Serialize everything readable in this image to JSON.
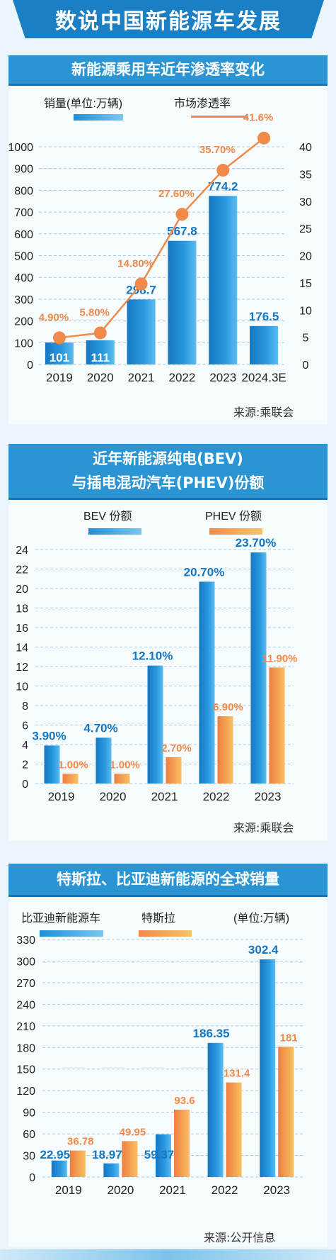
{
  "main_title": "数说中国新能源车发展",
  "colors": {
    "title_blue": "#1a7fc4",
    "bar_blue": "#1f8fd6",
    "bar_blue_light": "#46b0ec",
    "orange": "#f08a4b",
    "orange_light": "#f7b45d",
    "blue_label": "#1577c2"
  },
  "section1": {
    "title": "新能源乘用车近年渗透率变化",
    "legend_bar": "销量(单位:万辆)",
    "legend_line": "市场渗透率",
    "source": "来源:乘联会",
    "chart_data": {
      "type": "bar",
      "categories": [
        "2019",
        "2020",
        "2021",
        "2022",
        "2023",
        "2024.3E"
      ],
      "series": [
        {
          "name": "销量(单位:万辆)",
          "values": [
            101,
            111,
            298.7,
            567.8,
            774.2,
            176.5
          ],
          "value_labels": [
            "101",
            "111",
            "298.7",
            "567.8",
            "774.2",
            "176.5"
          ]
        },
        {
          "name": "市场渗透率",
          "type": "line",
          "values": [
            4.9,
            5.8,
            14.8,
            27.6,
            35.7,
            41.6
          ],
          "value_labels": [
            "4.90%",
            "5.80%",
            "14.80%",
            "27.60%",
            "35.70%",
            "41.6%"
          ]
        }
      ],
      "yticks_left": [
        "0",
        "100",
        "200",
        "300",
        "400",
        "500",
        "600",
        "700",
        "800",
        "900",
        "1000"
      ],
      "yticks_right": [
        "0",
        "5",
        "10",
        "15",
        "20",
        "25",
        "30",
        "35",
        "40"
      ],
      "ylim_left": [
        0,
        1000
      ],
      "ylim_right": [
        0,
        40
      ],
      "grid": "horizontal dashed"
    }
  },
  "section2": {
    "title_line1": "近年新能源纯电(BEV)",
    "title_line2": "与插电混动汽车(PHEV)份额",
    "legend_bev": "BEV 份额",
    "legend_phev": "PHEV 份额",
    "source": "来源:乘联会",
    "chart_data": {
      "type": "bar",
      "categories": [
        "2019",
        "2020",
        "2021",
        "2022",
        "2023"
      ],
      "series": [
        {
          "name": "BEV 份额",
          "values": [
            3.9,
            4.7,
            12.1,
            20.7,
            23.7
          ],
          "value_labels": [
            "3.90%",
            "4.70%",
            "12.10%",
            "20.70%",
            "23.70%"
          ]
        },
        {
          "name": "PHEV 份额",
          "values": [
            1.0,
            1.0,
            2.7,
            6.9,
            11.9
          ],
          "value_labels": [
            "1.00%",
            "1.00%",
            "2.70%",
            "6.90%",
            "11.90%"
          ]
        }
      ],
      "yticks": [
        "0",
        "2",
        "4",
        "6",
        "8",
        "10",
        "12",
        "14",
        "16",
        "18",
        "20",
        "22",
        "24"
      ],
      "ylim": [
        0,
        24
      ],
      "grid": "horizontal dashed"
    }
  },
  "section3": {
    "title": "特斯拉、比亚迪新能源的全球销量",
    "legend_byd": "比亚迪新能源车",
    "legend_tesla": "特斯拉",
    "unit": "(单位:万辆)",
    "source": "来源:公开信息",
    "chart_data": {
      "type": "bar",
      "categories": [
        "2019",
        "2020",
        "2021",
        "2022",
        "2023"
      ],
      "series": [
        {
          "name": "比亚迪新能源车",
          "values": [
            22.95,
            18.97,
            59.37,
            186.35,
            302.4
          ],
          "value_labels": [
            "22.95",
            "18.97",
            "59.37",
            "186.35",
            "302.4"
          ]
        },
        {
          "name": "特斯拉",
          "values": [
            36.78,
            49.95,
            93.6,
            131.4,
            181
          ],
          "value_labels": [
            "36.78",
            "49.95",
            "93.6",
            "131.4",
            "181"
          ]
        }
      ],
      "yticks": [
        "0",
        "30",
        "60",
        "90",
        "120",
        "150",
        "180",
        "210",
        "240",
        "270",
        "300",
        "330"
      ],
      "ylim": [
        0,
        330
      ],
      "grid": "horizontal dashed"
    }
  }
}
